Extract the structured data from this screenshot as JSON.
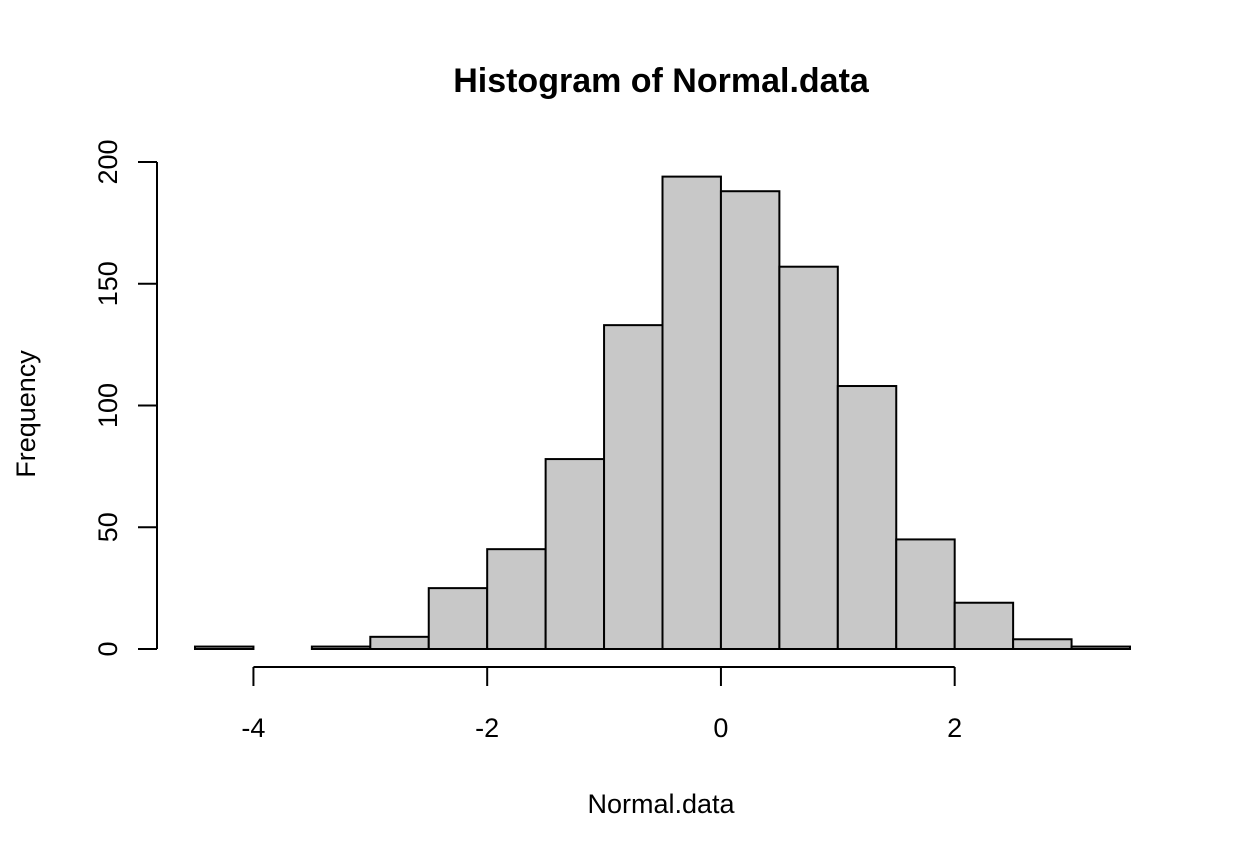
{
  "chart_data": {
    "type": "bar",
    "title": "Histogram of Normal.data",
    "xlabel": "Normal.data",
    "ylabel": "Frequency",
    "bin_edges": [
      -4.5,
      -4.0,
      -3.5,
      -3.0,
      -2.5,
      -2.0,
      -1.5,
      -1.0,
      -0.5,
      0.0,
      0.5,
      1.0,
      1.5,
      2.0,
      2.5,
      3.0,
      3.5
    ],
    "values": [
      1,
      0,
      1,
      5,
      25,
      41,
      78,
      133,
      194,
      188,
      157,
      108,
      45,
      19,
      4,
      1
    ],
    "xlim": [
      -4.5,
      3.5
    ],
    "ylim": [
      0,
      200
    ],
    "x_ticks": [
      -4,
      -2,
      0,
      2
    ],
    "x_tick_labels": [
      "-4",
      "-2",
      "0",
      "2"
    ],
    "y_ticks": [
      0,
      50,
      100,
      150,
      200
    ],
    "y_tick_labels": [
      "0",
      "50",
      "100",
      "150",
      "200"
    ],
    "grid": false,
    "bar_color": "#c8c8c8",
    "edge_color": "#000000"
  }
}
